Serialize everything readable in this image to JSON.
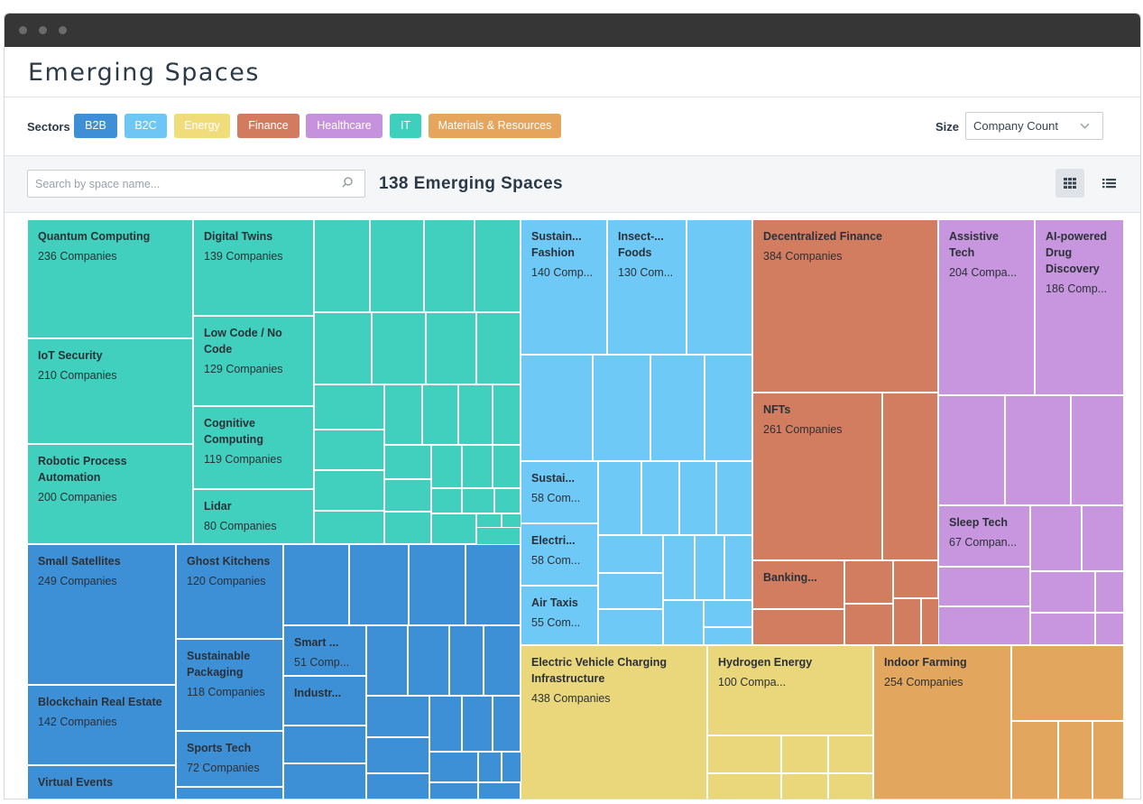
{
  "page_title": "Emerging Spaces",
  "filters": {
    "sectors_label": "Sectors",
    "sectors": [
      {
        "label": "B2B",
        "color": "#3f8fd6"
      },
      {
        "label": "B2C",
        "color": "#6ec6f5"
      },
      {
        "label": "Energy",
        "color": "#f0dc79"
      },
      {
        "label": "Finance",
        "color": "#d27b5f"
      },
      {
        "label": "Healthcare",
        "color": "#c792dd"
      },
      {
        "label": "IT",
        "color": "#3fd0bd"
      },
      {
        "label": "Materials & Resources",
        "color": "#e5a55c"
      }
    ],
    "size_label": "Size",
    "size_value": "Company Count"
  },
  "toolbar": {
    "search_placeholder": "Search by space name...",
    "count_title": "138 Emerging Spaces"
  },
  "colors": {
    "it": "#40d0bd",
    "b2b": "#3d8fd6",
    "b2c": "#6ec9f7",
    "finance": "#d27d60",
    "healthcare": "#c896de",
    "energy": "#ead77c",
    "materials": "#e3a65e"
  },
  "labeled_tiles": [
    {
      "name": "Quantum Computing",
      "count": "236 Companies",
      "sector": "it"
    },
    {
      "name": "Digital Twins",
      "count": "139 Companies",
      "sector": "it"
    },
    {
      "name": "Low Code / No Code",
      "count": "129 Companies",
      "sector": "it"
    },
    {
      "name": "IoT Security",
      "count": "210 Companies",
      "sector": "it"
    },
    {
      "name": "Cognitive Computing",
      "count": "119 Companies",
      "sector": "it"
    },
    {
      "name": "Robotic Process Automation",
      "count": "200 Companies",
      "sector": "it"
    },
    {
      "name": "Lidar",
      "count": "80 Companies",
      "sector": "it"
    },
    {
      "name": "Small Satellites",
      "count": "249 Companies",
      "sector": "b2b"
    },
    {
      "name": "Ghost Kitchens",
      "count": "120 Companies",
      "sector": "b2b"
    },
    {
      "name": "Smart ...",
      "count": "51 Comp...",
      "sector": "b2b"
    },
    {
      "name": "Sustainable Packaging",
      "count": "118 Companies",
      "sector": "b2b"
    },
    {
      "name": "Industr...",
      "count": "",
      "sector": "b2b"
    },
    {
      "name": "Blockchain Real Estate",
      "count": "142 Companies",
      "sector": "b2b"
    },
    {
      "name": "Sports Tech",
      "count": "72 Companies",
      "sector": "b2b"
    },
    {
      "name": "Virtual Events",
      "count": "",
      "sector": "b2b"
    },
    {
      "name": "Sustain... Fashion",
      "count": "140 Comp...",
      "sector": "b2c"
    },
    {
      "name": "Insect-... Foods",
      "count": "130 Com...",
      "sector": "b2c"
    },
    {
      "name": "Sustai...",
      "count": "58 Com...",
      "sector": "b2c"
    },
    {
      "name": "Electri...",
      "count": "58 Com...",
      "sector": "b2c"
    },
    {
      "name": "Air Taxis",
      "count": "55 Com...",
      "sector": "b2c"
    },
    {
      "name": "Decentralized Finance",
      "count": "384 Companies",
      "sector": "finance"
    },
    {
      "name": "NFTs",
      "count": "261 Companies",
      "sector": "finance"
    },
    {
      "name": "Banking...",
      "count": "",
      "sector": "finance"
    },
    {
      "name": "Assistive Tech",
      "count": "204 Compa...",
      "sector": "healthcare"
    },
    {
      "name": "AI-powered Drug Discovery",
      "count": "186 Comp...",
      "sector": "healthcare"
    },
    {
      "name": "Sleep Tech",
      "count": "67 Compan...",
      "sector": "healthcare"
    },
    {
      "name": "Electric Vehicle Charging Infrastructure",
      "count": "438 Companies",
      "sector": "energy"
    },
    {
      "name": "Hydrogen Energy",
      "count": "100 Compa...",
      "sector": "energy"
    },
    {
      "name": "Indoor Farming",
      "count": "254 Companies",
      "sector": "materials"
    }
  ]
}
